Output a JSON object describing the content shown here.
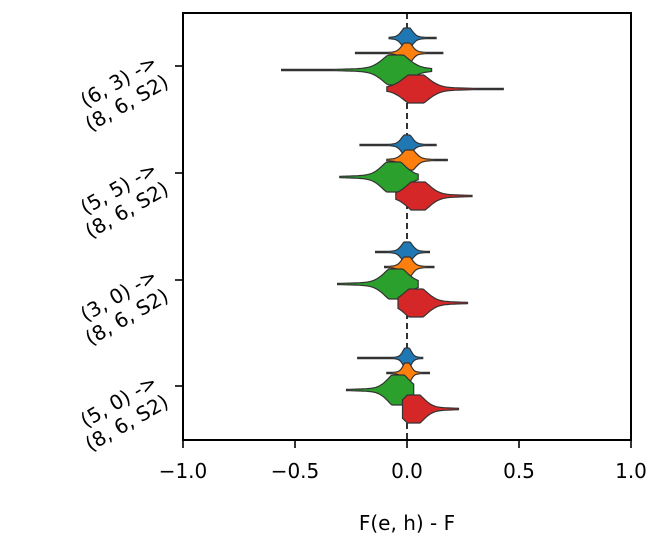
{
  "chart_data": {
    "type": "violin",
    "xlabel": "F(e, h) - F",
    "ylabel": "",
    "xlim": [
      -1.0,
      1.0
    ],
    "x_ticks": [
      -1.0,
      -0.5,
      0.0,
      0.5,
      1.0
    ],
    "x_tick_labels": [
      "−1.0",
      "−0.5",
      "0.0",
      "0.5",
      "1.0"
    ],
    "reference_line": {
      "x": 0.0,
      "style": "dashed"
    },
    "grid": false,
    "legend": "none",
    "series_colors": [
      "#1f77b4",
      "#ff7f0e",
      "#2ca02c",
      "#d62728"
    ],
    "groups": [
      {
        "label_line1": "(6, 3) ->",
        "label_line2": "(8, 6, S2)",
        "violins": [
          {
            "min": -0.08,
            "max": 0.13,
            "center": 0.0,
            "spread": 0.02
          },
          {
            "min": -0.23,
            "max": 0.16,
            "center": 0.0,
            "spread": 0.02
          },
          {
            "min": -0.56,
            "max": 0.11,
            "center": -0.05,
            "spread": 0.05
          },
          {
            "min": -0.09,
            "max": 0.43,
            "center": 0.04,
            "spread": 0.05
          }
        ]
      },
      {
        "label_line1": "(5, 5) ->",
        "label_line2": "(8, 6, S2)",
        "violins": [
          {
            "min": -0.21,
            "max": 0.13,
            "center": 0.0,
            "spread": 0.02
          },
          {
            "min": -0.09,
            "max": 0.18,
            "center": 0.01,
            "spread": 0.025
          },
          {
            "min": -0.3,
            "max": 0.05,
            "center": -0.06,
            "spread": 0.045
          },
          {
            "min": -0.05,
            "max": 0.29,
            "center": 0.05,
            "spread": 0.045
          }
        ]
      },
      {
        "label_line1": "(3, 0) ->",
        "label_line2": "(8, 6, S2)",
        "violins": [
          {
            "min": -0.14,
            "max": 0.1,
            "center": 0.0,
            "spread": 0.02
          },
          {
            "min": -0.1,
            "max": 0.12,
            "center": 0.0,
            "spread": 0.02
          },
          {
            "min": -0.31,
            "max": 0.05,
            "center": -0.05,
            "spread": 0.045
          },
          {
            "min": -0.04,
            "max": 0.27,
            "center": 0.04,
            "spread": 0.045
          }
        ]
      },
      {
        "label_line1": "(5, 0) ->",
        "label_line2": "(8, 6, S2)",
        "violins": [
          {
            "min": -0.22,
            "max": 0.07,
            "center": 0.0,
            "spread": 0.015
          },
          {
            "min": -0.09,
            "max": 0.1,
            "center": 0.0,
            "spread": 0.015
          },
          {
            "min": -0.27,
            "max": 0.03,
            "center": -0.04,
            "spread": 0.04
          },
          {
            "min": -0.02,
            "max": 0.23,
            "center": 0.03,
            "spread": 0.04
          }
        ]
      }
    ]
  }
}
